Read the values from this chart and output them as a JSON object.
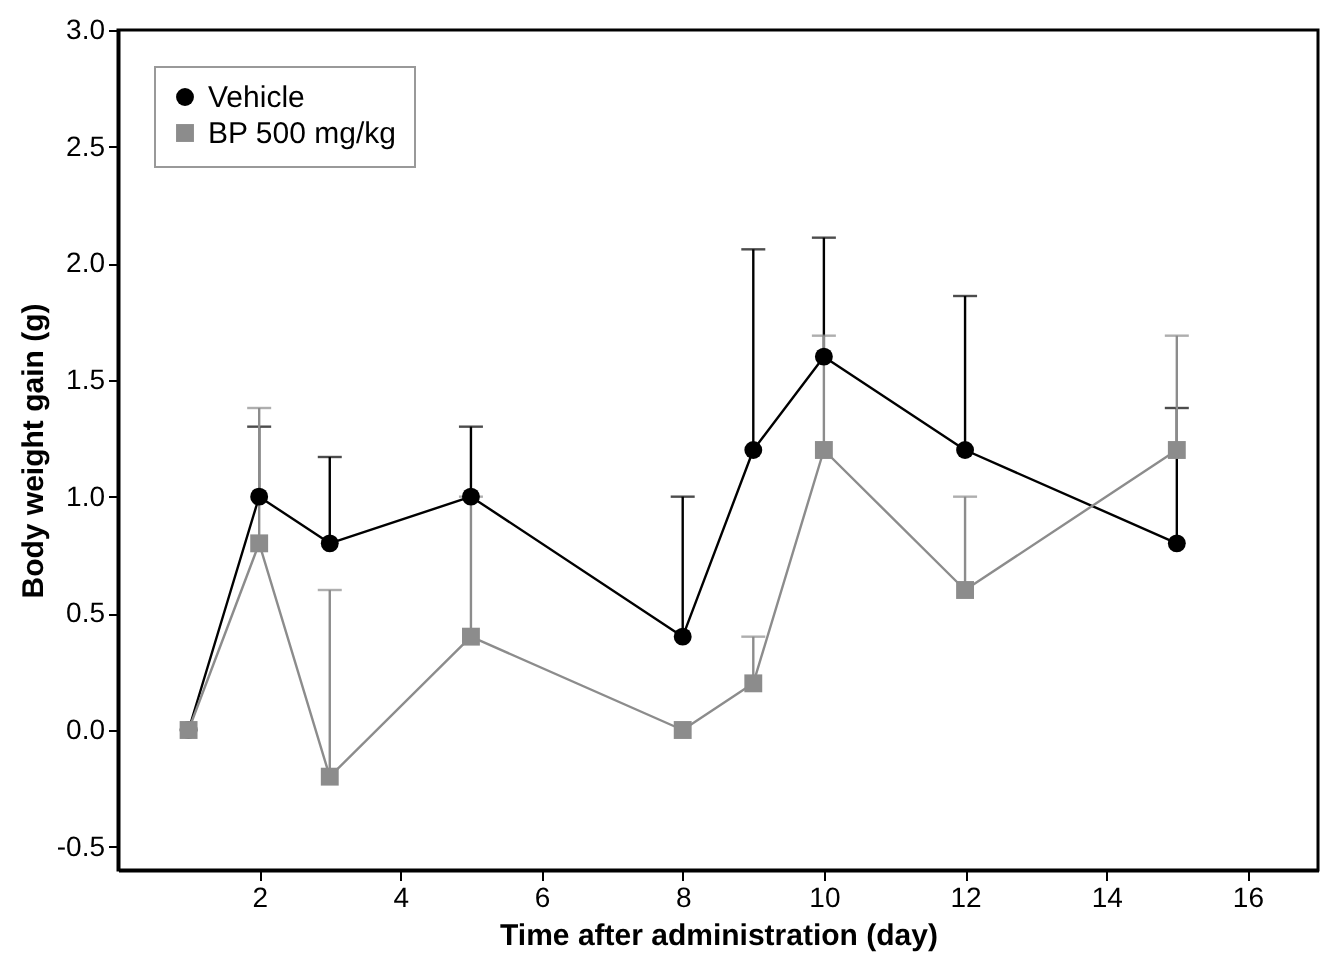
{
  "chart_data": {
    "type": "line",
    "xlabel": "Time after administration (day)",
    "ylabel": "Body weight gain (g)",
    "xlim": [
      0,
      17
    ],
    "xticks": [
      2,
      4,
      6,
      8,
      10,
      12,
      14,
      16
    ],
    "ylim": [
      -0.6,
      3.0
    ],
    "yticks": [
      -0.5,
      {
        "value": 0,
        "label": "0.0"
      },
      0.5,
      {
        "value": 1,
        "label": "1.0"
      },
      1.5,
      {
        "value": 2,
        "label": "2.0"
      },
      2.5,
      {
        "value": 3,
        "label": "3.0"
      }
    ],
    "grid": false,
    "legend": "top left",
    "line_style": "solid",
    "series": [
      {
        "name": "Vehicle",
        "color": "#000000",
        "marker": "circle",
        "x": [
          1,
          2,
          3,
          5,
          8,
          9,
          10,
          12,
          15
        ],
        "values": [
          0,
          1.0,
          0.8,
          1.0,
          0.4,
          1.2,
          1.6,
          1.2,
          0.8
        ],
        "errors": [
          null,
          [
            1.0,
            1.3
          ],
          [
            0.8,
            1.17
          ],
          [
            1.0,
            1.3
          ],
          [
            0.4,
            1.0
          ],
          [
            1.2,
            2.06
          ],
          [
            1.6,
            2.11
          ],
          [
            1.2,
            1.86
          ],
          [
            0.8,
            1.38
          ]
        ]
      },
      {
        "name": "BP 500 mg/kg",
        "color": "#8c8c8c",
        "marker": "square",
        "x": [
          1,
          2,
          3,
          5,
          8,
          9,
          10,
          12,
          15
        ],
        "values": [
          0,
          0.8,
          -0.2,
          0.4,
          0.0,
          0.2,
          1.2,
          0.6,
          1.2
        ],
        "errors": [
          null,
          [
            0.8,
            1.38
          ],
          [
            -0.2,
            0.6
          ],
          [
            0.4,
            1.0
          ],
          null,
          [
            0.2,
            0.4
          ],
          [
            1.2,
            1.69
          ],
          [
            0.6,
            1.0
          ],
          [
            1.2,
            1.69
          ]
        ]
      }
    ]
  }
}
